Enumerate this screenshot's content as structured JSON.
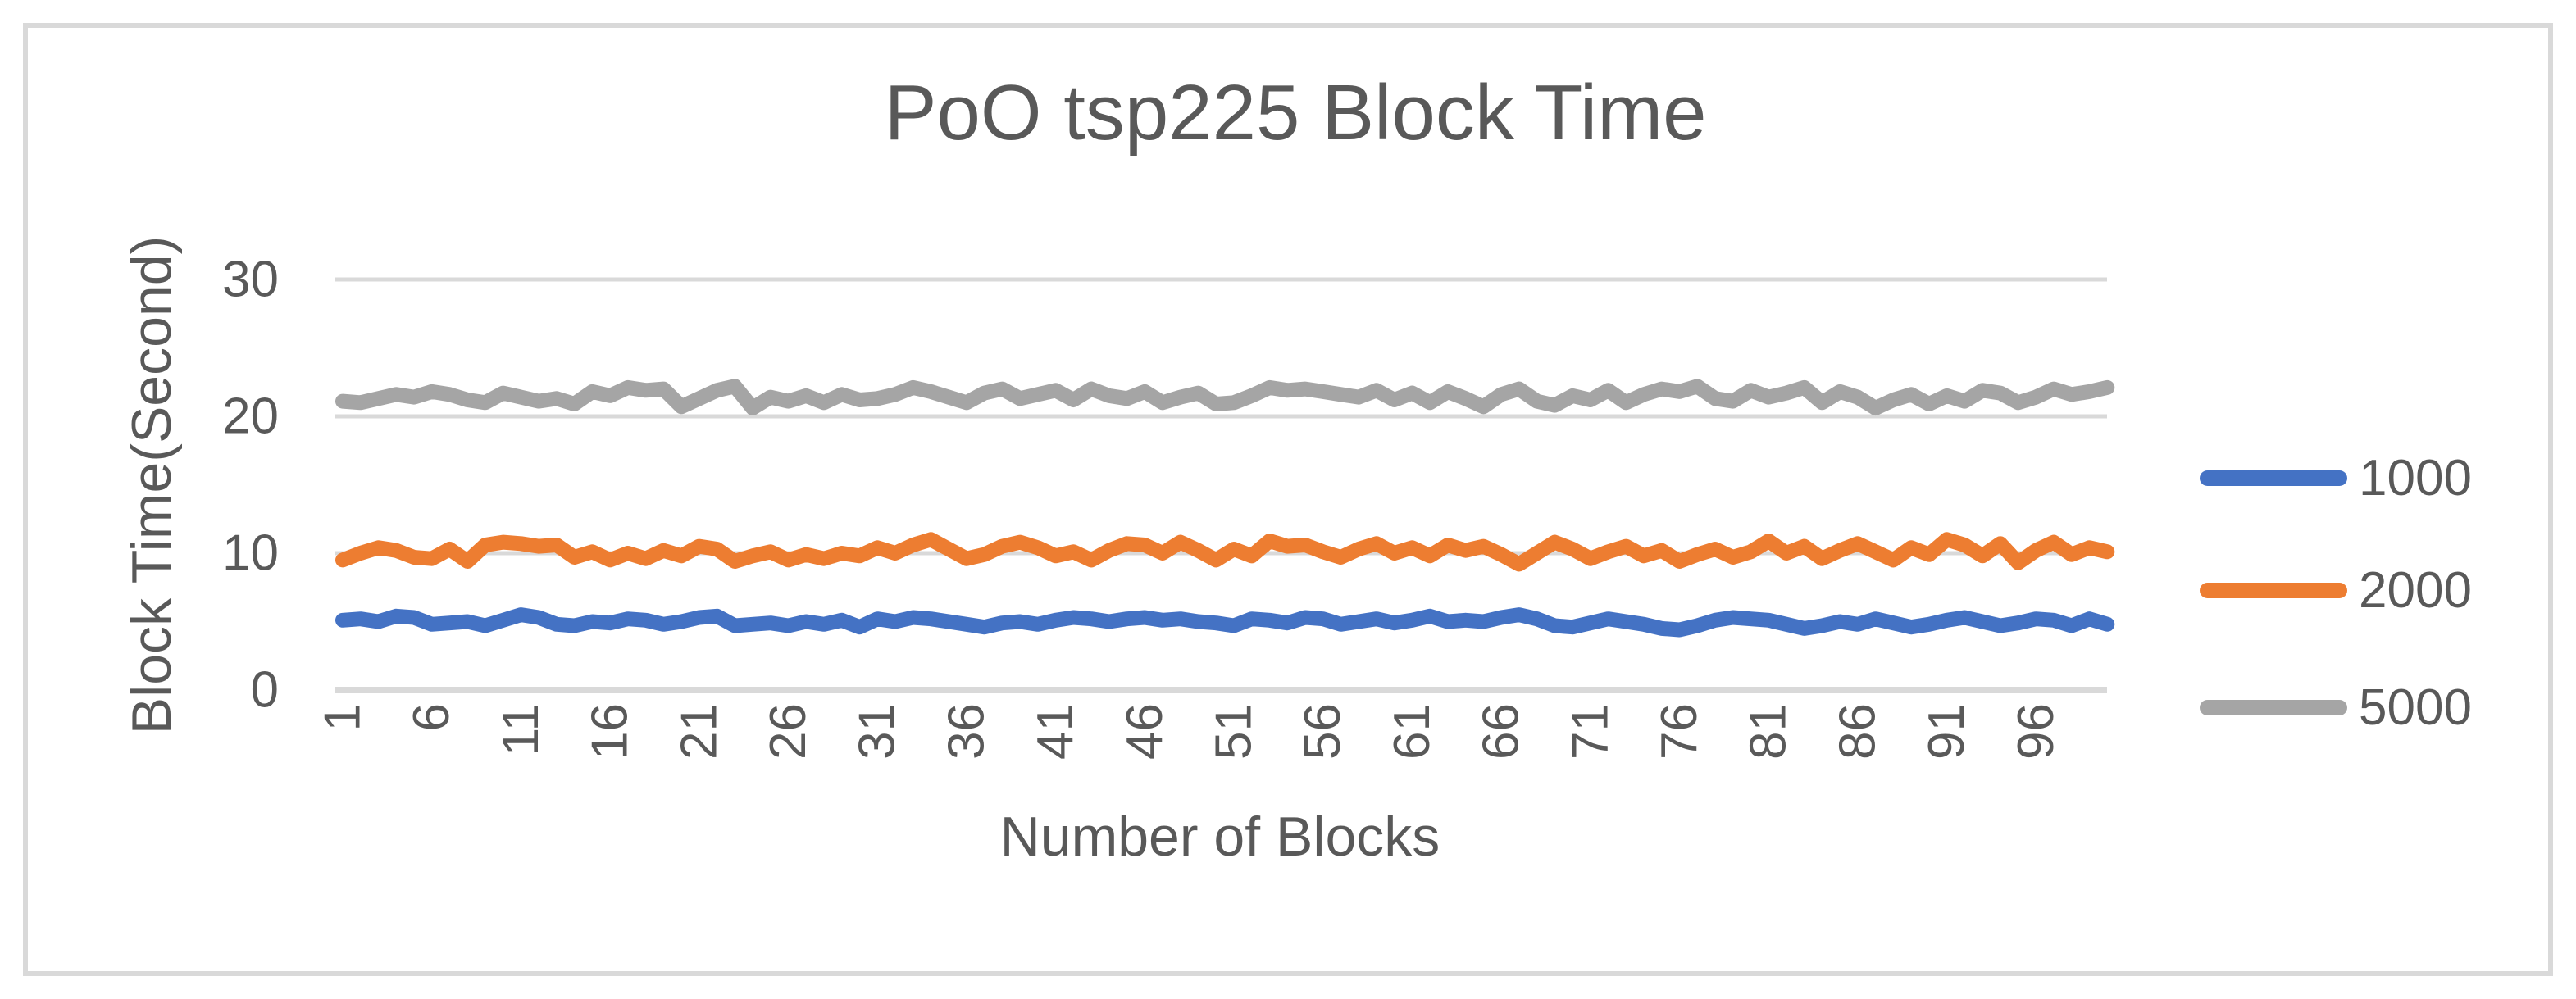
{
  "chart_data": {
    "type": "line",
    "title": "PoO tsp225 Block Time",
    "xlabel": "Number of Blocks",
    "ylabel": "Block Time(Second)",
    "x_range": [
      1,
      100
    ],
    "n_points": 100,
    "ylim": [
      0,
      30
    ],
    "yticks": [
      0,
      10,
      20,
      30
    ],
    "xticks": [
      1,
      6,
      11,
      16,
      21,
      26,
      31,
      36,
      41,
      46,
      51,
      56,
      61,
      66,
      71,
      76,
      81,
      86,
      91,
      96
    ],
    "grid": "horizontal",
    "legend_position": "right",
    "colors": {
      "grid": "#D9D9D9",
      "axis_line": "#D9D9D9",
      "text": "#595959",
      "frame_border": "#D9D9D9",
      "background": "#FFFFFF"
    },
    "series": [
      {
        "name": "1000",
        "color": "#4472C4",
        "values": [
          5.1,
          5.2,
          5.0,
          5.4,
          5.3,
          4.8,
          4.9,
          5.0,
          4.7,
          5.1,
          5.5,
          5.3,
          4.8,
          4.7,
          5.0,
          4.9,
          5.2,
          5.1,
          4.8,
          5.0,
          5.3,
          5.4,
          4.7,
          4.8,
          4.9,
          4.7,
          5.0,
          4.8,
          5.1,
          4.6,
          5.2,
          5.0,
          5.3,
          5.2,
          5.0,
          4.8,
          4.6,
          4.9,
          5.0,
          4.8,
          5.1,
          5.3,
          5.2,
          5.0,
          5.2,
          5.3,
          5.1,
          5.2,
          5.0,
          4.9,
          4.7,
          5.2,
          5.1,
          4.9,
          5.3,
          5.2,
          4.8,
          5.0,
          5.2,
          4.9,
          5.1,
          5.4,
          5.0,
          5.1,
          5.0,
          5.3,
          5.5,
          5.2,
          4.7,
          4.6,
          4.9,
          5.2,
          5.0,
          4.8,
          4.5,
          4.4,
          4.7,
          5.1,
          5.3,
          5.2,
          5.1,
          4.8,
          4.5,
          4.7,
          5.0,
          4.8,
          5.2,
          4.9,
          4.6,
          4.8,
          5.1,
          5.3,
          5.0,
          4.7,
          4.9,
          5.2,
          5.1,
          4.7,
          5.2,
          4.8
        ]
      },
      {
        "name": "2000",
        "color": "#ED7D31",
        "values": [
          9.5,
          10.0,
          10.4,
          10.2,
          9.7,
          9.6,
          10.3,
          9.4,
          10.6,
          10.8,
          10.7,
          10.5,
          10.6,
          9.7,
          10.1,
          9.5,
          10.0,
          9.6,
          10.2,
          9.8,
          10.5,
          10.3,
          9.4,
          9.8,
          10.1,
          9.5,
          9.9,
          9.6,
          10.0,
          9.8,
          10.4,
          10.0,
          10.6,
          11.0,
          10.3,
          9.6,
          9.9,
          10.5,
          10.8,
          10.4,
          9.8,
          10.1,
          9.5,
          10.2,
          10.7,
          10.6,
          10.0,
          10.8,
          10.2,
          9.5,
          10.3,
          9.8,
          10.9,
          10.5,
          10.6,
          10.1,
          9.7,
          10.3,
          10.7,
          10.0,
          10.4,
          9.8,
          10.6,
          10.2,
          10.5,
          9.9,
          9.2,
          10.0,
          10.8,
          10.3,
          9.6,
          10.1,
          10.5,
          9.8,
          10.2,
          9.4,
          9.9,
          10.3,
          9.7,
          10.1,
          10.9,
          10.0,
          10.5,
          9.6,
          10.2,
          10.7,
          10.1,
          9.5,
          10.4,
          9.9,
          11.0,
          10.6,
          9.8,
          10.7,
          9.3,
          10.2,
          10.8,
          9.9,
          10.4,
          10.1
        ]
      },
      {
        "name": "5000",
        "color": "#A5A5A5",
        "values": [
          21.1,
          21.0,
          21.3,
          21.6,
          21.4,
          21.8,
          21.6,
          21.2,
          21.0,
          21.7,
          21.4,
          21.1,
          21.3,
          20.9,
          21.8,
          21.5,
          22.1,
          21.9,
          22.0,
          20.7,
          21.3,
          21.9,
          22.2,
          20.6,
          21.4,
          21.1,
          21.5,
          21.0,
          21.6,
          21.2,
          21.3,
          21.6,
          22.1,
          21.8,
          21.4,
          21.0,
          21.7,
          22.0,
          21.3,
          21.6,
          21.9,
          21.2,
          22.0,
          21.5,
          21.3,
          21.8,
          21.0,
          21.4,
          21.7,
          20.9,
          21.0,
          21.5,
          22.1,
          21.9,
          22.0,
          21.8,
          21.6,
          21.4,
          21.9,
          21.2,
          21.7,
          21.0,
          21.8,
          21.3,
          20.7,
          21.6,
          22.0,
          21.1,
          20.8,
          21.5,
          21.2,
          21.9,
          21.0,
          21.6,
          22.0,
          21.8,
          22.2,
          21.3,
          21.1,
          21.9,
          21.4,
          21.7,
          22.1,
          21.0,
          21.8,
          21.4,
          20.6,
          21.2,
          21.6,
          20.9,
          21.5,
          21.1,
          21.9,
          21.7,
          21.0,
          21.4,
          22.0,
          21.6,
          21.8,
          22.1
        ]
      }
    ]
  }
}
